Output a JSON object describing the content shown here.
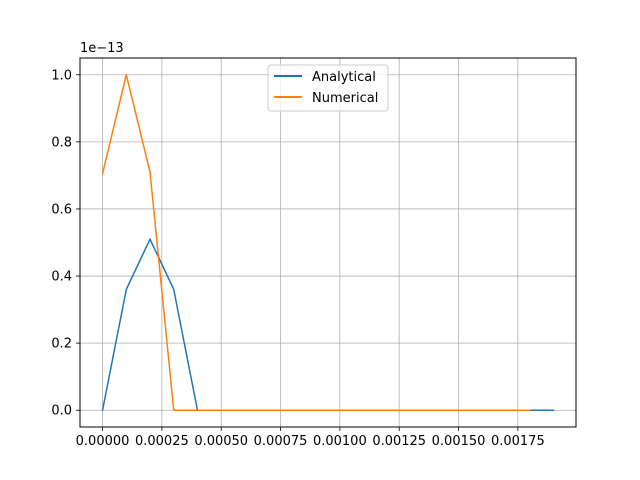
{
  "chart_data": {
    "type": "line",
    "title": "",
    "xlabel": "",
    "ylabel": "",
    "y_offset_label": "1e−13",
    "y_scale_exponent": -13,
    "xlim": [
      -9.5e-05,
      0.001995
    ],
    "ylim": [
      -0.05,
      1.05
    ],
    "grid": true,
    "legend_placement": "upper center",
    "x_ticks": [
      0.0,
      0.00025,
      0.0005,
      0.00075,
      0.001,
      0.00125,
      0.0015,
      0.00175
    ],
    "x_tick_labels": [
      "0.00000",
      "0.00025",
      "0.00050",
      "0.00075",
      "0.00100",
      "0.00125",
      "0.00150",
      "0.00175"
    ],
    "y_ticks": [
      0.0,
      0.2,
      0.4,
      0.6,
      0.8,
      1.0
    ],
    "y_tick_labels": [
      "0.0",
      "0.2",
      "0.4",
      "0.6",
      "0.8",
      "1.0"
    ],
    "series": [
      {
        "name": "Analytical",
        "color": "#1f77b4",
        "x": [
          0.0,
          0.0001,
          0.0002,
          0.0003,
          0.0004,
          0.0005,
          0.0006,
          0.0007,
          0.0008,
          0.0009,
          0.001,
          0.0011,
          0.0012,
          0.0013,
          0.0014,
          0.0015,
          0.0016,
          0.0017,
          0.0018,
          0.0019
        ],
        "y": [
          0.0,
          0.36,
          0.51,
          0.36,
          0.0,
          0.0,
          0.0,
          0.0,
          0.0,
          0.0,
          0.0,
          0.0,
          0.0,
          0.0,
          0.0,
          0.0,
          0.0,
          0.0,
          0.0,
          0.0
        ]
      },
      {
        "name": "Numerical",
        "color": "#ff7f0e",
        "x": [
          0.0,
          0.0001,
          0.0002,
          0.0003,
          0.0004,
          0.0005,
          0.0006,
          0.0007,
          0.0008,
          0.0009,
          0.001,
          0.0011,
          0.0012,
          0.0013,
          0.0014,
          0.0015,
          0.0016,
          0.0017,
          0.0018
        ],
        "y": [
          0.705,
          1.0,
          0.71,
          0.0,
          0.0,
          0.0,
          0.0,
          0.0,
          0.0,
          0.0,
          0.0,
          0.0,
          0.0,
          0.0,
          0.0,
          0.0,
          0.0,
          0.0,
          0.0
        ]
      }
    ]
  }
}
